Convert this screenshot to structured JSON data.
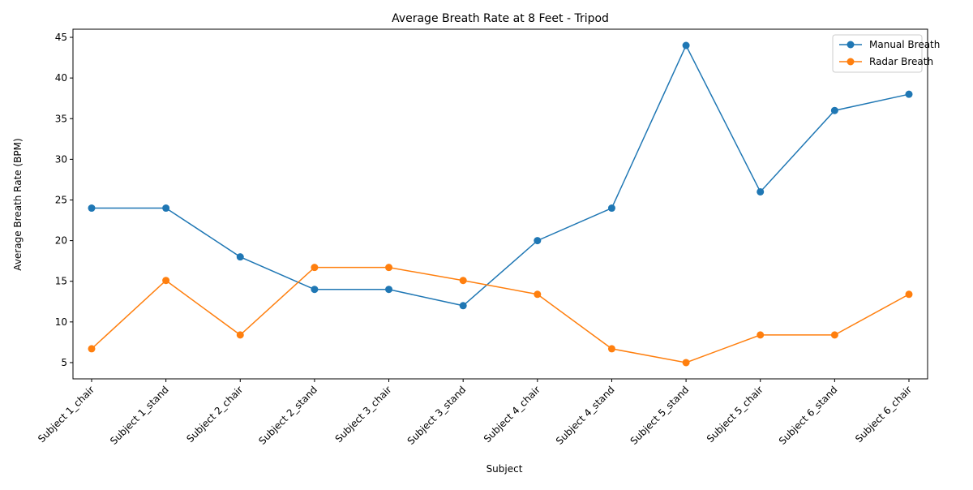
{
  "chart_data": {
    "type": "line",
    "title": "Average Breath Rate at 8 Feet - Tripod",
    "xlabel": "Subject",
    "ylabel": "Average Breath Rate (BPM)",
    "categories": [
      "Subject 1_chair",
      "Subject 1_stand",
      "Subject 2_chair",
      "Subject 2_stand",
      "Subject 3_chair",
      "Subject 3_stand",
      "Subject 4_chair",
      "Subject 4_stand",
      "Subject 5_stand",
      "Subject 5_chair",
      "Subject 6_stand",
      "Subject 6_chair"
    ],
    "series": [
      {
        "name": "Manual Breath",
        "color": "#1f77b4",
        "values": [
          24,
          24,
          18,
          14,
          14,
          12,
          20,
          24,
          44,
          26,
          36,
          38
        ]
      },
      {
        "name": "Radar Breath",
        "color": "#ff7f0e",
        "values": [
          6.7,
          15.1,
          8.4,
          16.7,
          16.7,
          15.1,
          13.4,
          6.7,
          5.0,
          8.4,
          8.4,
          13.4
        ]
      }
    ],
    "ylim": [
      3,
      46
    ],
    "yticks": [
      5,
      10,
      15,
      20,
      25,
      30,
      35,
      40,
      45
    ],
    "grid": false,
    "legend_position": "top-right"
  }
}
